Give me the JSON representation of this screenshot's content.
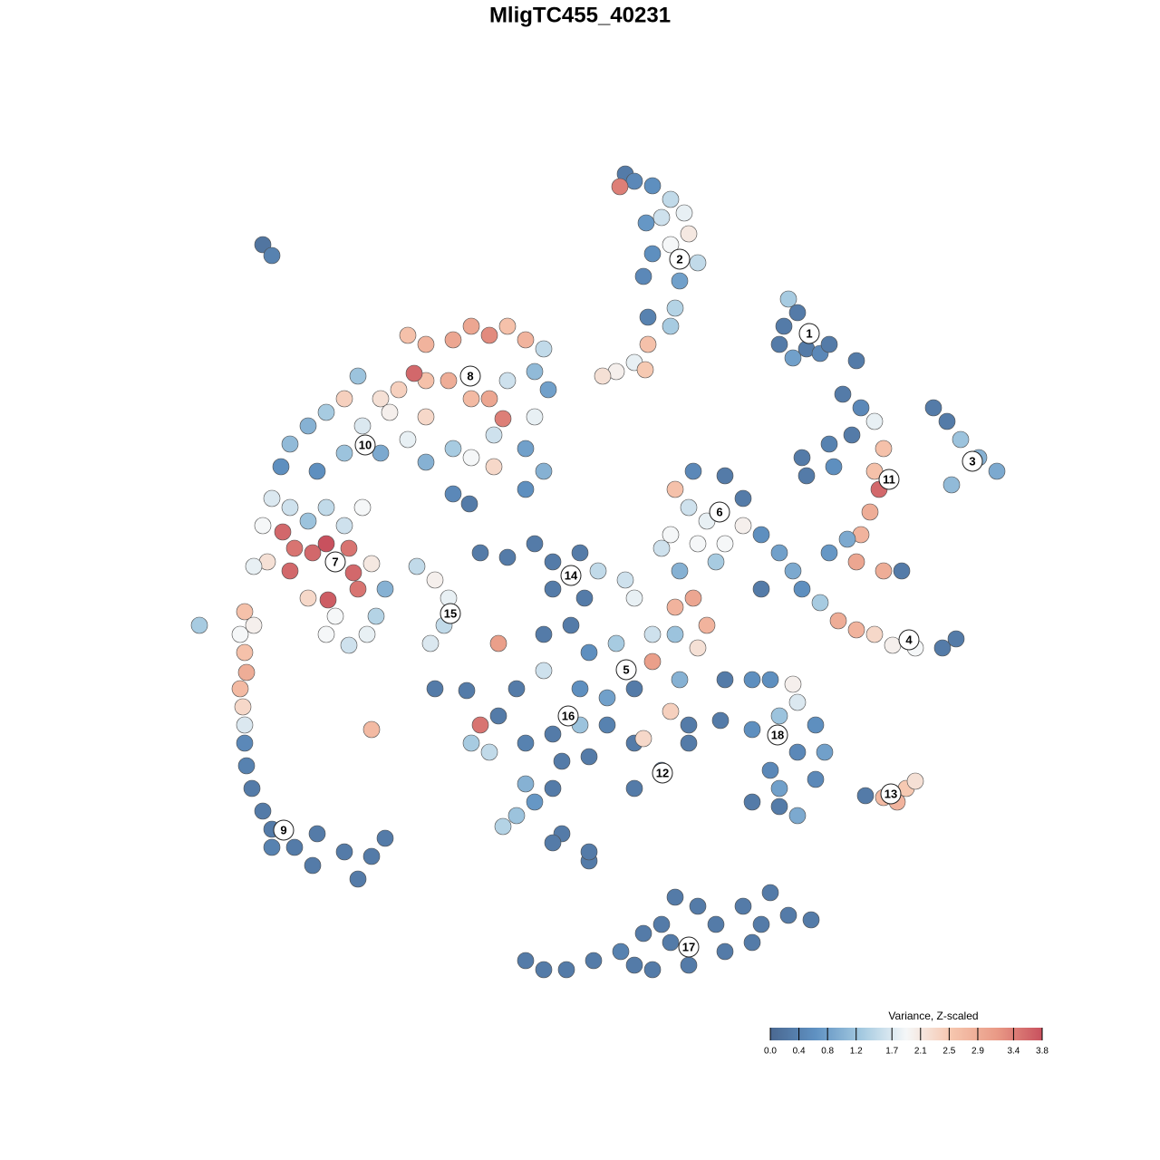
{
  "chart_data": {
    "type": "scatter",
    "title": "MligTC455_40231",
    "xlim": [
      0,
      1280
    ],
    "ylim": [
      1280,
      0
    ],
    "series": [
      {
        "x": [
          690,
          700,
          684,
          720,
          740,
          755,
          730,
          760,
          740,
          770,
          720,
          710,
          750,
          745,
          715,
          740,
          715,
          700,
          680,
          665,
          712,
          713
        ],
        "y": [
          192,
          200,
          206,
          205,
          220,
          235,
          240,
          258,
          270,
          290,
          280,
          305,
          310,
          340,
          350,
          360,
          380,
          400,
          410,
          415,
          408,
          246
        ],
        "values": [
          0.3,
          0.5,
          3.4,
          0.6,
          1.5,
          1.8,
          1.6,
          2.1,
          1.9,
          1.5,
          0.6,
          0.5,
          0.8,
          1.4,
          0.4,
          1.3,
          2.6,
          1.8,
          2.0,
          2.2,
          2.5,
          0.7
        ]
      },
      {
        "x": [
          290,
          300,
          870,
          880,
          865,
          890,
          875,
          905,
          915,
          860,
          945
        ],
        "y": [
          270,
          282,
          330,
          345,
          360,
          385,
          395,
          390,
          380,
          380,
          398
        ],
        "values": [
          0.2,
          0.4,
          1.3,
          0.3,
          0.3,
          0.3,
          0.8,
          0.5,
          0.3,
          0.3,
          0.3
        ]
      },
      {
        "x": [
          930,
          950,
          965,
          940,
          915,
          885,
          890,
          920,
          975,
          965,
          970,
          960,
          950,
          945,
          975,
          995,
          915,
          935
        ],
        "y": [
          435,
          450,
          465,
          480,
          490,
          505,
          525,
          515,
          495,
          520,
          540,
          565,
          590,
          620,
          630,
          630,
          610,
          595
        ],
        "values": [
          0.3,
          0.5,
          1.8,
          0.3,
          0.4,
          0.3,
          0.3,
          0.6,
          2.6,
          2.6,
          3.6,
          2.9,
          2.8,
          3.0,
          2.9,
          0.3,
          0.7,
          0.9
        ]
      },
      {
        "x": [
          1030,
          1045,
          1060,
          1080,
          1100,
          1050,
          860,
          875,
          885,
          905,
          925,
          945,
          965,
          985,
          1010,
          1040,
          1055,
          840
        ],
        "y": [
          450,
          465,
          485,
          505,
          520,
          535,
          610,
          630,
          650,
          665,
          685,
          695,
          700,
          712,
          715,
          715,
          705,
          650
        ],
        "values": [
          0.3,
          0.3,
          1.2,
          1.0,
          0.9,
          1.1,
          0.8,
          0.9,
          0.6,
          1.3,
          2.9,
          2.8,
          2.3,
          2.0,
          1.9,
          0.3,
          0.3,
          0.3
        ]
      },
      {
        "x": [
          765,
          800,
          820,
          745,
          760,
          780,
          740,
          730,
          770,
          800,
          820,
          840,
          790,
          750,
          765,
          745
        ],
        "y": [
          520,
          525,
          550,
          540,
          560,
          575,
          590,
          605,
          600,
          600,
          580,
          590,
          620,
          630,
          660,
          670
        ],
        "values": [
          0.5,
          0.3,
          0.3,
          2.6,
          1.6,
          1.8,
          1.9,
          1.6,
          1.9,
          1.9,
          2.0,
          0.6,
          1.3,
          1.0,
          3.0,
          2.8
        ]
      },
      {
        "x": [
          520,
          540,
          560,
          580,
          500,
          470,
          450,
          600,
          590,
          605,
          560,
          540,
          555,
          520,
          495,
          470,
          457,
          440,
          420,
          395,
          380,
          360,
          340,
          320,
          310,
          350,
          380,
          420,
          450,
          470,
          500,
          520,
          545,
          580,
          600,
          580,
          545,
          590,
          470,
          430,
          400
        ],
        "y": [
          360,
          370,
          360,
          375,
          375,
          380,
          370,
          385,
          410,
          430,
          420,
          440,
          462,
          440,
          420,
          420,
          412,
          430,
          440,
          415,
          440,
          455,
          470,
          490,
          515,
          520,
          500,
          500,
          485,
          510,
          495,
          505,
          515,
          495,
          520,
          540,
          480,
          460,
          460,
          455,
          470
        ],
        "values": [
          3.0,
          3.3,
          2.6,
          2.8,
          3.0,
          2.8,
          2.6,
          1.5,
          1.1,
          0.8,
          1.6,
          3.0,
          3.4,
          2.7,
          2.9,
          2.6,
          3.6,
          2.4,
          2.2,
          1.2,
          2.4,
          1.3,
          1.0,
          1.1,
          0.6,
          0.6,
          1.2,
          0.9,
          1.8,
          1.0,
          1.3,
          1.9,
          2.3,
          0.8,
          1.0,
          0.6,
          1.6,
          1.8,
          2.3,
          2.0,
          1.7
        ]
      },
      {
        "x": [
          300,
          320,
          290,
          312,
          340,
          360,
          380,
          400,
          325,
          345,
          360,
          385,
          390,
          320,
          295,
          280,
          395,
          362,
          340,
          370,
          360,
          385,
          405,
          415,
          425,
          410
        ],
        "y": [
          550,
          560,
          580,
          587,
          575,
          560,
          580,
          560,
          605,
          610,
          600,
          605,
          632,
          630,
          620,
          625,
          650,
          662,
          660,
          680,
          700,
          712,
          700,
          680,
          650,
          622
        ],
        "values": [
          1.7,
          1.6,
          1.9,
          3.6,
          1.2,
          1.5,
          1.6,
          1.9,
          3.5,
          3.6,
          3.8,
          3.5,
          3.6,
          3.6,
          2.2,
          1.8,
          3.5,
          3.7,
          2.3,
          1.9,
          1.9,
          1.6,
          1.8,
          1.4,
          1.0,
          2.1
        ]
      },
      {
        "x": [
          270,
          280,
          265,
          270,
          272,
          265,
          268,
          270,
          270,
          272,
          278,
          290,
          300,
          300,
          325,
          345,
          350,
          380,
          395,
          410,
          425,
          220,
          410
        ],
        "y": [
          675,
          690,
          700,
          720,
          742,
          760,
          780,
          800,
          820,
          845,
          870,
          895,
          915,
          935,
          935,
          955,
          920,
          940,
          970,
          945,
          925,
          690,
          805
        ],
        "values": [
          2.6,
          2.0,
          1.9,
          2.6,
          2.9,
          2.7,
          2.3,
          1.7,
          0.5,
          0.4,
          0.3,
          0.3,
          0.3,
          0.4,
          0.3,
          0.3,
          0.3,
          0.3,
          0.3,
          0.3,
          0.3,
          1.3,
          2.7
        ]
      },
      {
        "x": [
          460,
          480,
          495,
          490,
          475,
          530,
          560,
          590,
          610,
          640,
          610,
          660,
          690,
          700,
          645,
          500,
          518
        ],
        "y": [
          625,
          640,
          660,
          690,
          710,
          610,
          615,
          600,
          620,
          610,
          650,
          630,
          640,
          660,
          660,
          545,
          556
        ],
        "values": [
          1.5,
          2.0,
          1.8,
          1.5,
          1.7,
          0.3,
          0.3,
          0.3,
          0.3,
          0.3,
          0.3,
          1.5,
          1.6,
          1.8,
          0.3,
          0.5,
          0.3
        ]
      },
      {
        "x": [
          550,
          600,
          630,
          650,
          680,
          720,
          720,
          745,
          770,
          780,
          750,
          700,
          670,
          640,
          600,
          570,
          550,
          530,
          520,
          540,
          580,
          610,
          640,
          670,
          700,
          710,
          740,
          760,
          730,
          700,
          650,
          620,
          610,
          580,
          590,
          570,
          555,
          620,
          610,
          650,
          800,
          830,
          795,
          760,
          480,
          515
        ],
        "y": [
          710,
          700,
          690,
          720,
          710,
          700,
          730,
          700,
          715,
          690,
          750,
          760,
          770,
          760,
          740,
          760,
          790,
          800,
          820,
          830,
          820,
          810,
          800,
          800,
          820,
          815,
          785,
          820,
          850,
          870,
          835,
          840,
          870,
          865,
          885,
          900,
          912,
          920,
          930,
          950,
          750,
          750,
          795,
          800,
          760,
          762
        ],
        "values": [
          3.1,
          0.3,
          0.3,
          0.6,
          1.3,
          1.6,
          3.1,
          1.2,
          2.2,
          2.8,
          1.0,
          0.3,
          0.8,
          0.6,
          1.6,
          0.3,
          0.3,
          3.5,
          1.3,
          1.5,
          0.4,
          0.3,
          1.2,
          0.4,
          0.3,
          2.3,
          2.4,
          0.3,
          0.3,
          0.3,
          0.3,
          0.3,
          0.3,
          1.0,
          0.7,
          1.2,
          1.4,
          0.3,
          0.3,
          0.3,
          0.3,
          0.6,
          0.3,
          0.3,
          0.3,
          0.3
        ]
      },
      {
        "x": [
          850,
          875,
          880,
          860,
          830,
          900,
          910,
          880,
          850,
          860,
          900,
          830,
          860,
          880,
          955,
          975,
          990,
          1000,
          1010
        ],
        "y": [
          750,
          755,
          775,
          790,
          805,
          800,
          830,
          830,
          850,
          870,
          860,
          885,
          890,
          900,
          878,
          880,
          885,
          870,
          862
        ],
        "values": [
          0.6,
          2.0,
          1.7,
          1.2,
          0.6,
          0.6,
          0.8,
          0.5,
          0.5,
          0.8,
          0.5,
          0.3,
          0.3,
          0.9,
          0.3,
          2.7,
          2.8,
          2.5,
          2.2
        ]
      },
      {
        "x": [
          580,
          600,
          625,
          655,
          685,
          700,
          720,
          740,
          745,
          770,
          790,
          800,
          820,
          840,
          850,
          870,
          895,
          830,
          760,
          730,
          710,
          650
        ],
        "y": [
          1060,
          1070,
          1070,
          1060,
          1050,
          1065,
          1070,
          1040,
          990,
          1000,
          1020,
          1050,
          1000,
          1020,
          985,
          1010,
          1015,
          1040,
          1065,
          1020,
          1030,
          940
        ],
        "values": [
          0.3,
          0.3,
          0.3,
          0.3,
          0.4,
          0.3,
          0.3,
          0.3,
          0.3,
          0.3,
          0.3,
          0.3,
          0.3,
          0.3,
          0.3,
          0.3,
          0.3,
          0.3,
          0.3,
          0.3,
          0.3,
          0.3
        ]
      }
    ],
    "cluster_labels": [
      {
        "text": "1",
        "x": 893,
        "y": 368
      },
      {
        "text": "2",
        "x": 750,
        "y": 286
      },
      {
        "text": "3",
        "x": 1073,
        "y": 509
      },
      {
        "text": "4",
        "x": 1003,
        "y": 706
      },
      {
        "text": "5",
        "x": 691,
        "y": 739
      },
      {
        "text": "6",
        "x": 794,
        "y": 565
      },
      {
        "text": "7",
        "x": 370,
        "y": 620
      },
      {
        "text": "8",
        "x": 519,
        "y": 415
      },
      {
        "text": "9",
        "x": 313,
        "y": 916
      },
      {
        "text": "10",
        "x": 403,
        "y": 491
      },
      {
        "text": "11",
        "x": 981,
        "y": 529
      },
      {
        "text": "12",
        "x": 731,
        "y": 853
      },
      {
        "text": "13",
        "x": 983,
        "y": 876
      },
      {
        "text": "14",
        "x": 630,
        "y": 635
      },
      {
        "text": "15",
        "x": 497,
        "y": 677
      },
      {
        "text": "16",
        "x": 627,
        "y": 790
      },
      {
        "text": "17",
        "x": 760,
        "y": 1045
      },
      {
        "text": "18",
        "x": 858,
        "y": 811
      }
    ],
    "colorbar": {
      "title": "Variance, Z-scaled",
      "clim": [
        0,
        3.8
      ],
      "colors": [
        "#4a6891",
        "#5f91c2",
        "#a3c9e0",
        "#f5f7f8",
        "#f6c6ae",
        "#e99a86",
        "#c8515e"
      ],
      "ticks": [
        {
          "value": 0,
          "label": "0.0"
        },
        0.4,
        0.8,
        1.2,
        1.7,
        2.1,
        2.5,
        2.9,
        3.4,
        3.8
      ]
    }
  }
}
